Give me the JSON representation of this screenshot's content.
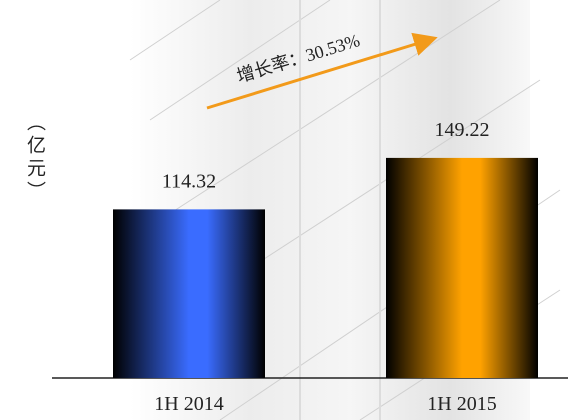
{
  "chart_data": {
    "type": "bar",
    "y_label": "（亿元）",
    "annotation": "增长率：30.53%",
    "categories": [
      "1H 2014",
      "1H 2015"
    ],
    "values": [
      114.32,
      149.22
    ],
    "colors": [
      "#3a6cff",
      "#ffa200"
    ]
  }
}
